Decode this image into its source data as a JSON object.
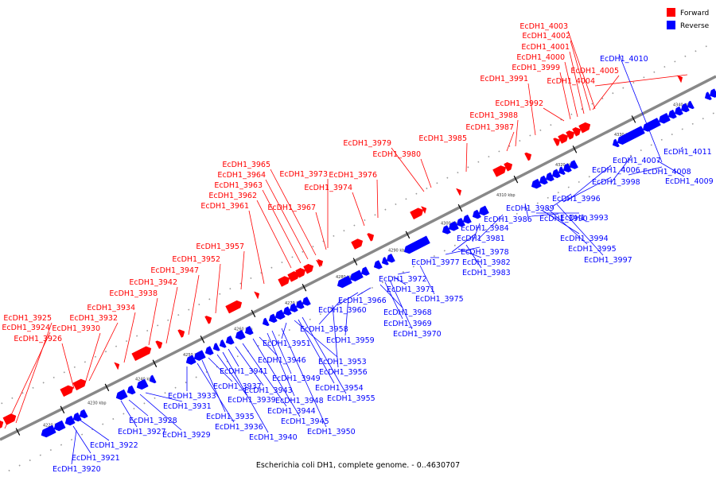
{
  "caption": "Escherichia coli DH1, complete genome. - 0..4630707",
  "colors": {
    "forward": "#ff0000",
    "reverse": "#0000ff",
    "axis": "#888888"
  },
  "legend": [
    {
      "label": "Forward",
      "color": "#ff0000"
    },
    {
      "label": "Reverse",
      "color": "#0000ff"
    }
  ],
  "ticks": [
    "4220 kbp",
    "4230 kbp",
    "4240 kbp",
    "4250 kbp",
    "4260 kbp",
    "4270 kbp",
    "4280 kbp",
    "4290 kbp",
    "4300 kbp",
    "4310 kbp",
    "4320 kbp",
    "4330 kbp",
    "4340 kbp"
  ],
  "forward_labels": [
    "EcDH1_3924",
    "EcDH1_3925",
    "EcDH1_3926",
    "EcDH1_3930",
    "EcDH1_3932",
    "EcDH1_3934",
    "EcDH1_3938",
    "EcDH1_3942",
    "EcDH1_3947",
    "EcDH1_3952",
    "EcDH1_3957",
    "EcDH1_3961",
    "EcDH1_3962",
    "EcDH1_3963",
    "EcDH1_3964",
    "EcDH1_3965",
    "EcDH1_3967",
    "EcDH1_3973",
    "EcDH1_3974",
    "EcDH1_3976",
    "EcDH1_3979",
    "EcDH1_3980",
    "EcDH1_3985",
    "EcDH1_3987",
    "EcDH1_3988",
    "EcDH1_3991",
    "EcDH1_3992",
    "EcDH1_3999",
    "EcDH1_4000",
    "EcDH1_4001",
    "EcDH1_4002",
    "EcDH1_4003",
    "EcDH1_4004",
    "EcDH1_4005"
  ],
  "reverse_labels": [
    "EcDH1_3920",
    "EcDH1_3921",
    "EcDH1_3922",
    "EcDH1_3927",
    "EcDH1_3928",
    "EcDH1_3929",
    "EcDH1_3931",
    "EcDH1_3933",
    "EcDH1_3935",
    "EcDH1_3936",
    "EcDH1_3937",
    "EcDH1_3939",
    "EcDH1_3940",
    "EcDH1_3941",
    "EcDH1_3943",
    "EcDH1_3944",
    "EcDH1_3945",
    "EcDH1_3946",
    "EcDH1_3948",
    "EcDH1_3949",
    "EcDH1_3950",
    "EcDH1_3951",
    "EcDH1_3953",
    "EcDH1_3954",
    "EcDH1_3955",
    "EcDH1_3956",
    "EcDH1_3958",
    "EcDH1_3959",
    "EcDH1_3960",
    "EcDH1_3966",
    "EcDH1_3968",
    "EcDH1_3969",
    "EcDH1_3970",
    "EcDH1_3971",
    "EcDH1_3972",
    "EcDH1_3975",
    "EcDH1_3977",
    "EcDH1_3978",
    "EcDH1_3981",
    "EcDH1_3982",
    "EcDH1_3983",
    "EcDH1_3984",
    "EcDH1_3986",
    "EcDH1_3989",
    "EcDH1_3990",
    "EcDH1_3993",
    "EcDH1_3994",
    "EcDH1_3995",
    "EcDH1_3996",
    "EcDH1_3997",
    "EcDH1_3998",
    "EcDH1_4006",
    "EcDH1_4007",
    "EcDH1_4008",
    "EcDH1_4009",
    "EcDH1_4010",
    "EcDH1_4011"
  ]
}
